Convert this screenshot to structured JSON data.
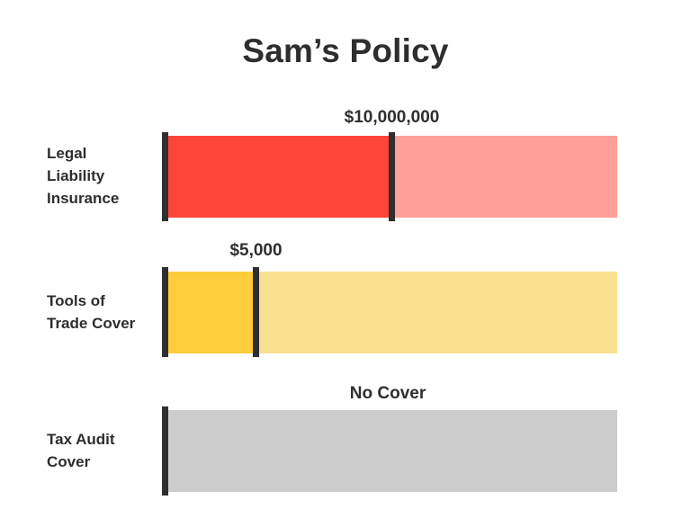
{
  "title": "Sam’s Policy",
  "colors": {
    "legal_fill": "#ff453a",
    "legal_track": "#ff9f99",
    "tools_fill": "#fecd3c",
    "tools_track": "#fae18f",
    "tax_track": "#cccccc",
    "marker": "#2f2f2f",
    "text": "#2e2e2e"
  },
  "rows": [
    {
      "label_lines": [
        "Legal",
        "Liability",
        "Insurance"
      ],
      "value_label": "$10,000,000",
      "fill_fraction": 0.5
    },
    {
      "label_lines": [
        "Tools of",
        "Trade Cover"
      ],
      "value_label": "$5,000",
      "fill_fraction": 0.2
    },
    {
      "label_lines": [
        "Tax Audit",
        "Cover"
      ],
      "value_label": "No Cover",
      "fill_fraction": 0
    }
  ],
  "chart_data": {
    "type": "bar",
    "title": "Sam’s Policy",
    "orientation": "horizontal",
    "categories": [
      "Legal Liability Insurance",
      "Tools of Trade Cover",
      "Tax Audit Cover"
    ],
    "values": [
      10000000,
      5000,
      0
    ],
    "value_labels": [
      "$10,000,000",
      "$5,000",
      "No Cover"
    ],
    "fill_fractions": [
      0.5,
      0.2,
      0
    ],
    "grid": false,
    "legend": "none"
  }
}
